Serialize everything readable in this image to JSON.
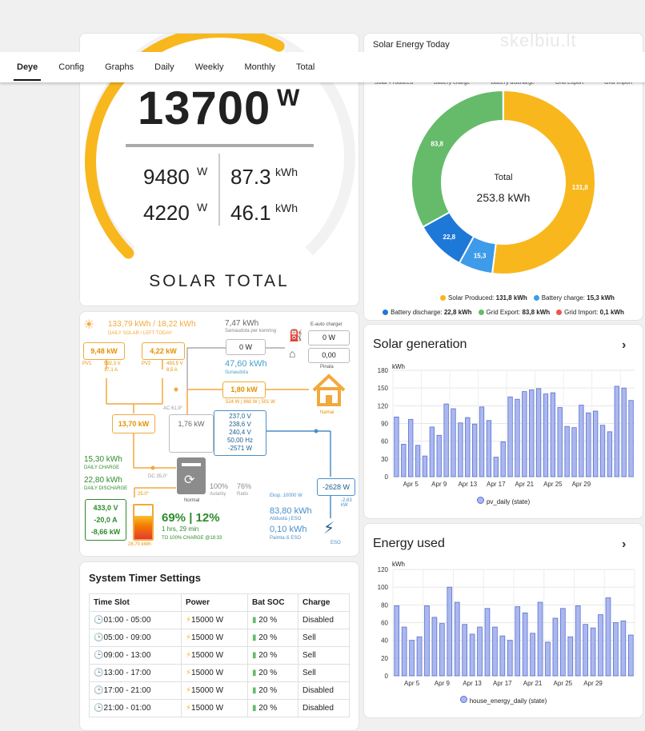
{
  "tabs": [
    {
      "label": "Deye",
      "active": true
    },
    {
      "label": "Config"
    },
    {
      "label": "Graphs"
    },
    {
      "label": "Daily"
    },
    {
      "label": "Weekly"
    },
    {
      "label": "Monthly"
    },
    {
      "label": "Total"
    }
  ],
  "watermark": "skelbiu.lt",
  "solar_total": {
    "power": "13700",
    "power_unit": "W",
    "pv1_power": "9480",
    "pv1_unit": "W",
    "pv1_energy": "87.3",
    "pv1_energy_unit": "kWh",
    "pv2_power": "4220",
    "pv2_unit": "W",
    "pv2_energy": "46.1",
    "pv2_energy_unit": "kWh",
    "title": "SOLAR TOTAL",
    "gauge_fraction": 0.6
  },
  "energy_today": {
    "title": "Solar Energy Today",
    "top_labels": [
      "Solar Produced",
      "Battery charge",
      "Battery discharge",
      "Grid Export",
      "Grid Import"
    ],
    "total_label": "Total",
    "total_value": "253.8 kWh",
    "legend": [
      {
        "label": "Solar Produced:",
        "value": "131,8 kWh",
        "color": "#f8b71c"
      },
      {
        "label": "Battery charge:",
        "value": "15,3 kWh",
        "color": "#3d9be9"
      },
      {
        "label": "Battery discharge:",
        "value": "22,8 kWh",
        "color": "#1e78d8"
      },
      {
        "label": "Grid Export:",
        "value": "83,8 kWh",
        "color": "#66bb6a"
      },
      {
        "label": "Grid Import:",
        "value": "0,1 kWh",
        "color": "#ef5350"
      }
    ]
  },
  "flow": {
    "daily_solar": "133,79 kWh / 18,22 kWh",
    "daily_solar_label": "DAILY SOLAR / LEFT TODAY",
    "pv1_kw": "9,48 kW",
    "pv1_label": "PV1",
    "pv1_v": "592,3 V",
    "pv1_a": "17,1 A",
    "pv2_kw": "4,22 kW",
    "pv2_label": "PV2",
    "pv2_v": "493,5 V",
    "pv2_a": "8,5 A",
    "nonessential_kwh": "7,47 kWh",
    "nonessential_label": "Samaudota per komring",
    "ev_label": "E-auto charger",
    "ev_value": "0 W",
    "w1_value": "0 W",
    "pinala_value": "0,00",
    "pinala_label": "Pinala",
    "consumed_kwh": "47,60 kWh",
    "consumed_label": "Sunaudota",
    "home_kw": "1,80 kW",
    "home_label": "Namai",
    "phases": "524 W | 860 W | 501 W",
    "pv_total_kw": "13,70 kW",
    "ac_temp": "AC 61,9°",
    "inverter_kw": "1,76 kW",
    "grid_v1": "237,0 V",
    "grid_v2": "238,6 V",
    "grid_v3": "240,4 V",
    "grid_hz": "50,00 Hz",
    "grid_w": "-2571 W",
    "daily_charge": "15,30 kWh",
    "daily_charge_label": "DAILY CHARGE",
    "daily_discharge": "22,80 kWh",
    "daily_discharge_label": "DAILY DISCHARGE",
    "dc_temp": "DC 35,0°",
    "autarky_pct": "100%",
    "autarky_label": "Autarky",
    "ratio_pct": "76%",
    "ratio_label": "Ratio",
    "status": "Normal",
    "grid_kw": "-2628 W",
    "grid_small": "-2,63 kW",
    "export_label": "Eksp. 10000 W",
    "export_kwh": "83,80 kWh",
    "export_sub": "Atiduota į ESO",
    "import_kwh": "0,10 kWh",
    "import_sub": "Paimta iš ESO",
    "eso_label": "ESO",
    "bat_temp": "25.0°",
    "bat_v": "433,0 V",
    "bat_a": "-20,0 A",
    "bat_kw": "-8,66 kW",
    "bat_energy": "28,70 kWh",
    "soc": "69% | 12%",
    "time_left": "1 hrs, 29 min",
    "charge_to": "TO 100% CHARGE @18:33"
  },
  "timer": {
    "title": "System Timer Settings",
    "headers": [
      "Time Slot",
      "Power",
      "Bat SOC",
      "Charge"
    ],
    "rows": [
      {
        "slot": "01:00 - 05:00",
        "power": "15000 W",
        "soc": "20 %",
        "charge": "Disabled"
      },
      {
        "slot": "05:00 - 09:00",
        "power": "15000 W",
        "soc": "20 %",
        "charge": "Sell"
      },
      {
        "slot": "09:00 - 13:00",
        "power": "15000 W",
        "soc": "20 %",
        "charge": "Sell"
      },
      {
        "slot": "13:00 - 17:00",
        "power": "15000 W",
        "soc": "20 %",
        "charge": "Sell"
      },
      {
        "slot": "17:00 - 21:00",
        "power": "15000 W",
        "soc": "20 %",
        "charge": "Disabled"
      },
      {
        "slot": "21:00 - 01:00",
        "power": "15000 W",
        "soc": "20 %",
        "charge": "Disabled"
      }
    ]
  },
  "solar_gen": {
    "title": "Solar generation",
    "unit": "kWh",
    "legend": "pv_daily (state)"
  },
  "energy_used": {
    "title": "Energy used",
    "unit": "kWh",
    "legend": "house_energy_daily (state)"
  },
  "chart_data": [
    {
      "type": "pie",
      "title": "Solar Energy Today",
      "categories": [
        "Solar Produced",
        "Battery charge",
        "Battery discharge",
        "Grid Export",
        "Grid Import"
      ],
      "values": [
        131.8,
        15.3,
        22.8,
        83.8,
        0.1
      ],
      "colors": [
        "#f8b71c",
        "#3d9be9",
        "#1e78d8",
        "#66bb6a",
        "#ef5350"
      ],
      "slice_labels": [
        "131,8",
        "15,3",
        "22,8",
        "83,8",
        ""
      ]
    },
    {
      "type": "bar",
      "title": "Solar generation",
      "ylabel": "kWh",
      "ylim": [
        0,
        180
      ],
      "yticks": [
        0,
        30,
        60,
        90,
        120,
        150,
        180
      ],
      "xticks": [
        "Apr 5",
        "Apr 9",
        "Apr 13",
        "Apr 17",
        "Apr 21",
        "Apr 25",
        "Apr 29"
      ],
      "values": [
        101,
        55,
        97,
        53,
        35,
        84,
        70,
        123,
        115,
        91,
        100,
        89,
        118,
        95,
        33,
        59,
        135,
        131,
        144,
        147,
        149,
        140,
        142,
        117,
        85,
        83,
        121,
        108,
        111,
        87,
        76,
        153,
        150,
        129
      ],
      "legend": "pv_daily (state)"
    },
    {
      "type": "bar",
      "title": "Energy used",
      "ylabel": "kWh",
      "ylim": [
        0,
        120
      ],
      "yticks": [
        0,
        20,
        40,
        60,
        80,
        100,
        120
      ],
      "xticks": [
        "Apr 5",
        "Apr 9",
        "Apr 13",
        "Apr 17",
        "Apr 21",
        "Apr 25",
        "Apr 29"
      ],
      "values": [
        79,
        55,
        40,
        44,
        79,
        66,
        59,
        100,
        83,
        58,
        47,
        55,
        76,
        55,
        45,
        40,
        78,
        71,
        48,
        83,
        38,
        65,
        76,
        44,
        79,
        58,
        54,
        69,
        88,
        60,
        62,
        46
      ],
      "legend": "house_energy_daily (state)"
    }
  ]
}
